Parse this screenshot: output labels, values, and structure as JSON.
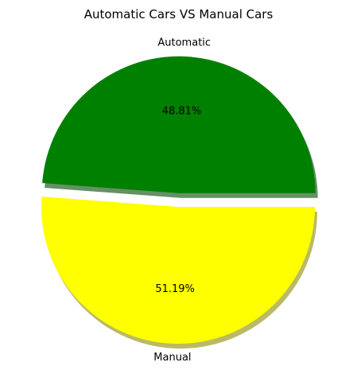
{
  "chart_data": {
    "type": "pie",
    "title": "Automatic Cars VS Manual Cars",
    "start_angle_deg": 0,
    "counterclock": true,
    "shadow": true,
    "slices": [
      {
        "label": "Automatic",
        "value": 48.81,
        "pct_label": "48.81%",
        "color": "#008000",
        "explode": 0.1
      },
      {
        "label": "Manual",
        "value": 51.19,
        "pct_label": "51.19%",
        "color": "#ffff00",
        "explode": 0
      }
    ]
  }
}
